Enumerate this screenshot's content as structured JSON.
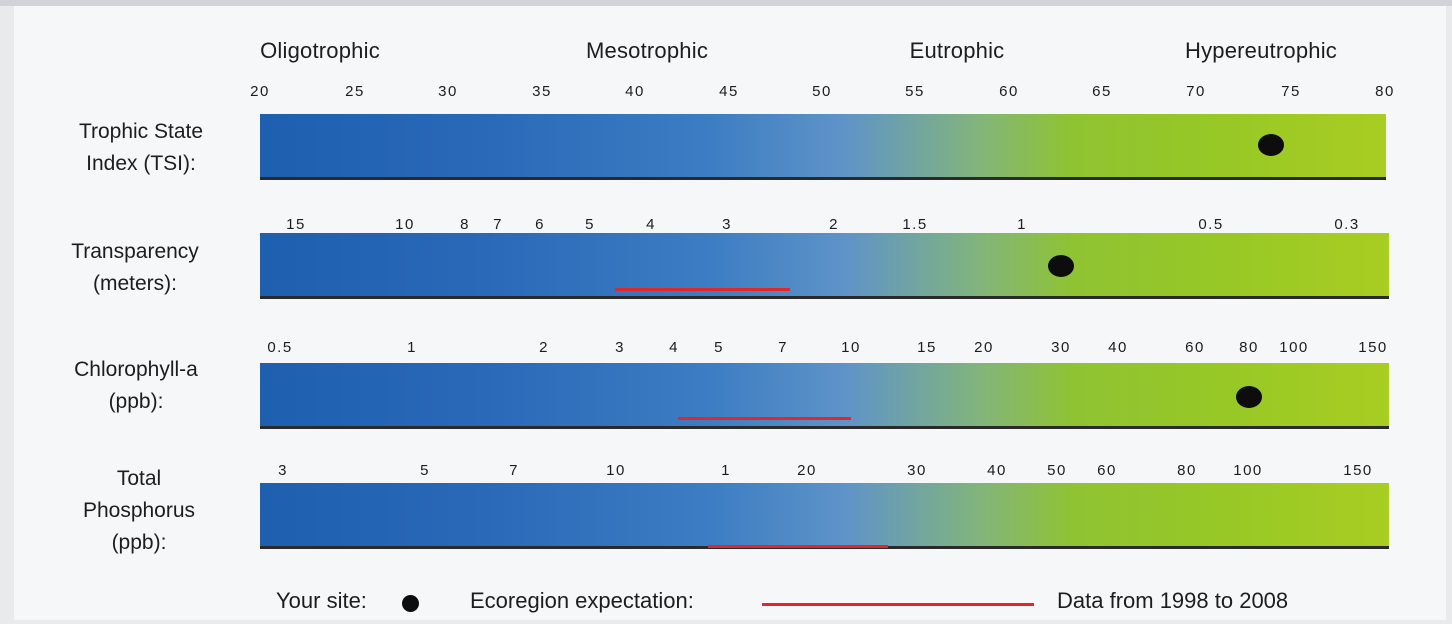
{
  "chart_data": {
    "type": "gradient-scale",
    "categories": [
      "Oligotrophic",
      "Mesotrophic",
      "Eutrophic",
      "Hypereutrophic"
    ],
    "rows": [
      {
        "label": "Trophic State\nIndex (TSI):",
        "ticks": [
          "20",
          "25",
          "30",
          "35",
          "40",
          "45",
          "50",
          "55",
          "60",
          "65",
          "70",
          "75",
          "80"
        ],
        "site_value": 74,
        "expectation": null
      },
      {
        "label": "Transparency\n(meters):",
        "ticks": [
          "15",
          "10",
          "8",
          "7",
          "6",
          "5",
          "4",
          "3",
          "2",
          "1.5",
          "1",
          "0.5",
          "0.3"
        ],
        "site_value": 0.9,
        "expectation": [
          4.5,
          2.5
        ]
      },
      {
        "label": "Chlorophyll-a\n(ppb):",
        "ticks": [
          "0.5",
          "1",
          "2",
          "3",
          "4",
          "5",
          "7",
          "10",
          "15",
          "20",
          "30",
          "40",
          "60",
          "80",
          "100",
          "150"
        ],
        "site_value": 90,
        "expectation": [
          4,
          10
        ]
      },
      {
        "label": "Total\nPhosphorus\n(ppb):",
        "ticks": [
          "3",
          "5",
          "7",
          "10",
          "1",
          "20",
          "30",
          "40",
          "50",
          "60",
          "80",
          "100",
          "150"
        ],
        "site_value": null,
        "expectation": [
          13,
          27
        ]
      }
    ]
  },
  "legend": {
    "site_label": "Your site:",
    "expectation_label": "Ecoregion expectation:",
    "data_range": "Data from 1998 to 2008"
  },
  "colors": {
    "site_marker": "#0d0d0d",
    "expectation_line": "#e3262a"
  }
}
